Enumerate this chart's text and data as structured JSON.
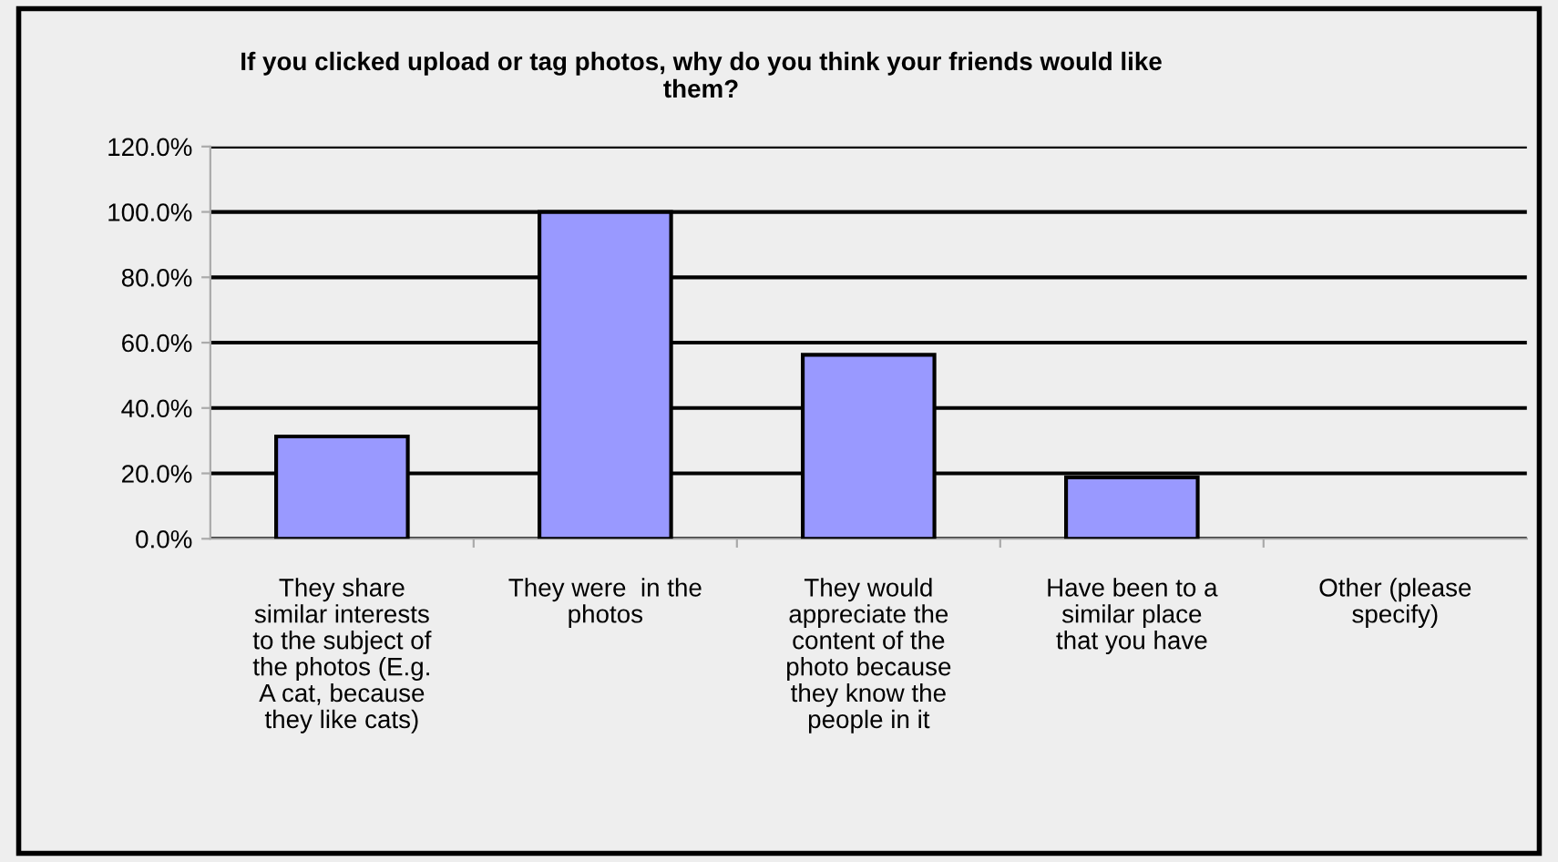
{
  "chart_data": {
    "type": "bar",
    "title": "If you clicked upload or tag photos, why do you think your friends would like\nthem?",
    "categories": [
      "They share\nsimilar interests\nto the subject of\nthe photos (E.g.\nA cat, because\nthey like cats)",
      "They were  in the\nphotos",
      "They would\nappreciate the\ncontent of the\nphoto because\nthey know the\npeople in it",
      "Have been to a\nsimilar place\nthat you have",
      "Other (please\nspecify)"
    ],
    "values": [
      31.3,
      100,
      56.3,
      18.8,
      0
    ],
    "color": "#9999ff",
    "ylim": [
      0,
      120
    ],
    "yticks": [
      {
        "value": 0,
        "label": "0.0%"
      },
      {
        "value": 20,
        "label": "20.0%"
      },
      {
        "value": 40,
        "label": "40.0%"
      },
      {
        "value": 60,
        "label": "60.0%"
      },
      {
        "value": 80,
        "label": "80.0%"
      },
      {
        "value": 100,
        "label": "100.0%"
      },
      {
        "value": 120,
        "label": "120.0%"
      }
    ],
    "grid": "y",
    "legend": false
  }
}
